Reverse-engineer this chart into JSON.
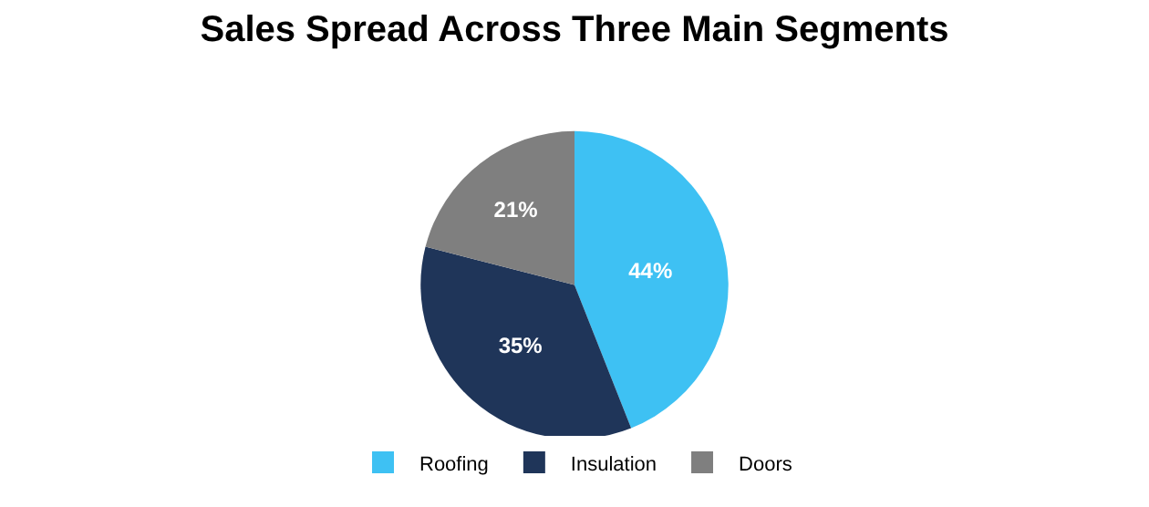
{
  "chart_data": {
    "type": "pie",
    "title": "Sales Spread Across Three Main Segments",
    "categories": [
      "Roofing",
      "Insulation",
      "Doors"
    ],
    "values": [
      44,
      35,
      21
    ],
    "value_labels": [
      "44%",
      "35%",
      "21%"
    ],
    "colors": [
      "#3ec1f3",
      "#1f3559",
      "#7f7f7f"
    ],
    "legend": "bottom"
  }
}
